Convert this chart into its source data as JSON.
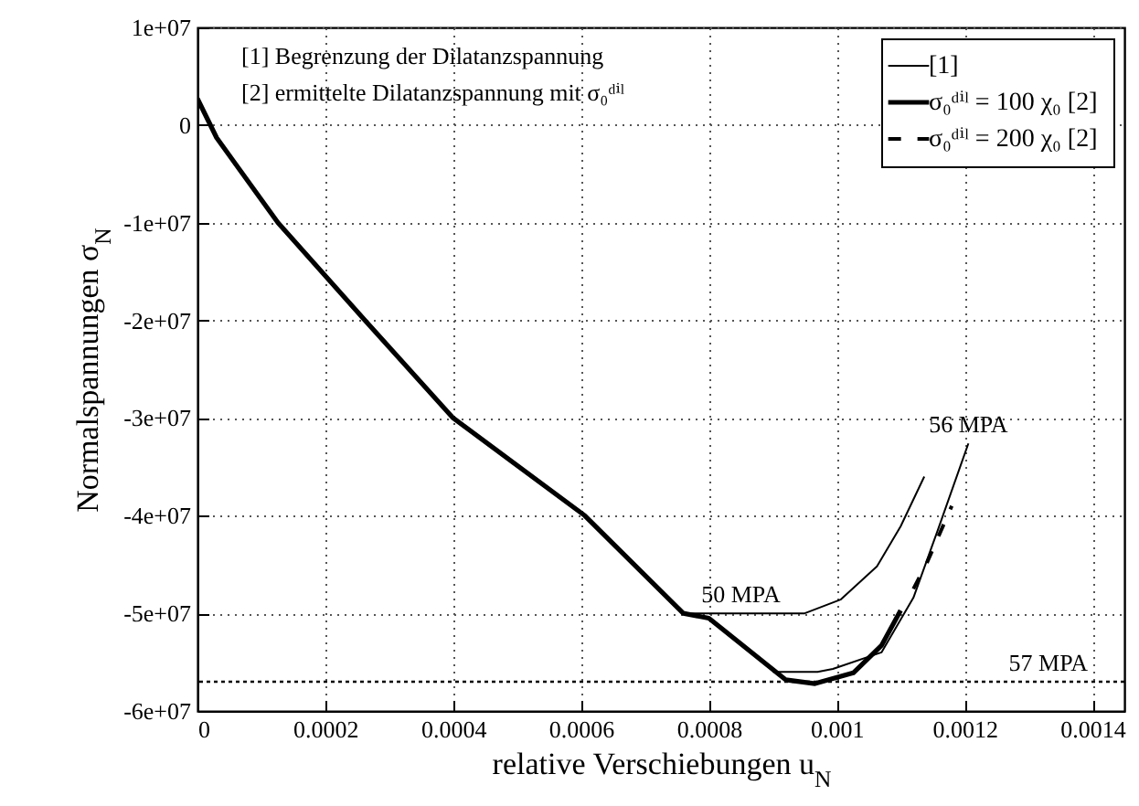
{
  "chart_data": {
    "type": "line",
    "xlabel": "relative Verschiebungen u$_{N}$",
    "ylabel": "Normalspannungen σ$_{N}$",
    "series": [
      {
        "name": "[1]",
        "color": "#000000",
        "x": [
          0.00076,
          0.00085,
          0.00095,
          0.001006,
          0.001063,
          0.0011,
          0.001137
        ],
        "values": [
          -50000000,
          -50000000,
          -50000000,
          -48600000,
          -45200000,
          -41100000,
          -36000000
        ]
      },
      {
        "color": "#000000",
        "x": [
          0.0009,
          0.00097,
          0.000994,
          0.00107,
          0.00112,
          0.001158,
          0.001206
        ],
        "values": [
          -56000000,
          -56000000,
          -55700000,
          -54000000,
          -48400000,
          -41500000,
          -32600000
        ]
      },
      {
        "name": "σ₀ᵈⁱˡ = 100 χ₀ [2]",
        "color": "#000000",
        "x": [
          0,
          3e-05,
          0.000126,
          0.000262,
          0.0004,
          0.000606,
          0.00076,
          0.0008,
          0.00092,
          0.000966,
          0.001026,
          0.00107,
          0.0011
        ],
        "values": [
          2700000,
          -1300000,
          -10000000,
          -20000000,
          -30000000,
          -40000000,
          -50000000,
          -50500000,
          -56800000,
          -57200000,
          -56100000,
          -53300000,
          -49700000
        ]
      },
      {
        "name": "σ₀ᵈⁱˡ = 200 χ₀ [2]",
        "color": "#000000",
        "line_style": "dashed",
        "x": [
          0.00112,
          0.00114,
          0.00116,
          0.00118
        ],
        "values": [
          -47500000,
          -45000000,
          -42000000,
          -39000000
        ]
      }
    ],
    "xlim": [
      0,
      0.00145
    ],
    "xticks": [
      0,
      0.0002,
      0.0004,
      0.0006,
      0.0008,
      0.001,
      0.0012,
      0.0014
    ],
    "ylim": [
      -60000000,
      10000000
    ],
    "yticks": [
      {
        "value": -60000000,
        "label": "-6e+07"
      },
      {
        "value": -50000000,
        "label": "-5e+07"
      },
      {
        "value": -40000000,
        "label": "-4e+07"
      },
      {
        "value": -30000000,
        "label": "-3e+07"
      },
      {
        "value": -20000000,
        "label": "-2e+07"
      },
      {
        "value": -10000000,
        "label": "-1e+07"
      },
      0,
      {
        "value": 10000000,
        "label": "1e+07"
      }
    ],
    "ref_lines": [
      {
        "axis": "y",
        "value": -57000000,
        "label": "57 MPA",
        "line_style": "dotted"
      }
    ],
    "annotations": [
      "[1] Begrenzung der Dilatanzspannung",
      "[2] ermittelte Dilatanzspannung mit σ₀ᵈⁱˡ",
      {
        "text": "50 MPA",
        "x": 0.00085,
        "y": -50000000
      },
      {
        "text": "56 MPA",
        "x": 0.001206,
        "y": -32600000
      }
    ],
    "grid": true,
    "legend": "top right",
    "marker": "none",
    "line_style": "solid"
  }
}
